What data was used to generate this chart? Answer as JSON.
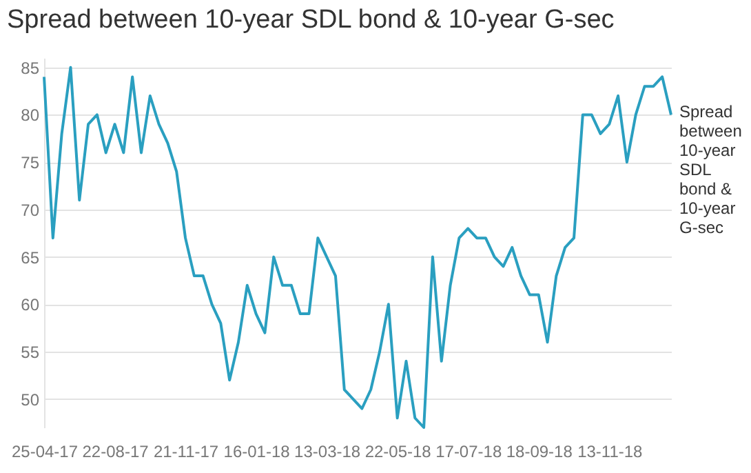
{
  "chart_data": {
    "type": "line",
    "title": "Spread between 10-year SDL bond & 10-year G-sec",
    "categories": [
      "25-04-17",
      null,
      null,
      null,
      null,
      null,
      null,
      null,
      "22-08-17",
      null,
      null,
      null,
      null,
      null,
      null,
      null,
      "21-11-17",
      null,
      null,
      null,
      null,
      null,
      null,
      null,
      "16-01-18",
      null,
      null,
      null,
      null,
      null,
      null,
      null,
      "13-03-18",
      null,
      null,
      null,
      null,
      null,
      null,
      null,
      "22-05-18",
      null,
      null,
      null,
      null,
      null,
      null,
      null,
      "17-07-18",
      null,
      null,
      null,
      null,
      null,
      null,
      null,
      "18-09-18",
      null,
      null,
      null,
      null,
      null,
      null,
      null,
      "13-11-18",
      null,
      null,
      null,
      null,
      null,
      null,
      null
    ],
    "series": [
      {
        "name": "Spread between 10-year SDL bond & 10-year G-sec",
        "color": "#2a9fc0",
        "values": [
          84,
          67,
          78,
          85,
          71,
          79,
          80,
          76,
          79,
          76,
          84,
          76,
          82,
          79,
          77,
          74,
          67,
          63,
          63,
          60,
          58,
          52,
          56,
          62,
          59,
          57,
          65,
          62,
          62,
          59,
          59,
          67,
          65,
          63,
          51,
          50,
          49,
          51,
          55,
          60,
          48,
          54,
          48,
          47,
          65,
          54,
          62,
          67,
          68,
          67,
          67,
          65,
          64,
          66,
          63,
          61,
          61,
          56,
          63,
          66,
          67,
          80,
          80,
          78,
          79,
          82,
          75,
          80,
          83,
          83,
          84,
          80
        ]
      }
    ],
    "ylim": [
      47,
      86
    ],
    "yticks": [
      50,
      55,
      60,
      65,
      70,
      75,
      80,
      85
    ],
    "grid": "y",
    "legend": false
  }
}
